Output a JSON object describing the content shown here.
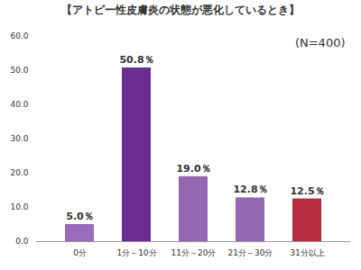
{
  "chart_data": {
    "type": "bar",
    "title": "【アトピー性皮膚炎の状態が悪化しているとき】",
    "annotation": "(N=400)",
    "categories": [
      "0分",
      "1分～10分",
      "11分～20分",
      "21分～30分",
      "31分以上"
    ],
    "values": [
      5.0,
      50.8,
      19.0,
      12.8,
      12.5
    ],
    "value_labels": [
      "5.0％",
      "50.8％",
      "19.0％",
      "12.8％",
      "12.5％"
    ],
    "colors": [
      "#9a6bb8",
      "#6b2d91",
      "#9467b0",
      "#9467b0",
      "#b52c3e"
    ],
    "ylim": [
      0,
      60
    ],
    "yticks": [
      {
        "value": 0,
        "label": "0.0"
      },
      {
        "value": 10,
        "label": "10.0"
      },
      {
        "value": 20,
        "label": "20.0"
      },
      {
        "value": 30,
        "label": "30.0"
      },
      {
        "value": 40,
        "label": "40.0"
      },
      {
        "value": 50,
        "label": "50.0"
      },
      {
        "value": 60,
        "label": "60.0"
      }
    ],
    "grid": false,
    "data_labels": true
  }
}
